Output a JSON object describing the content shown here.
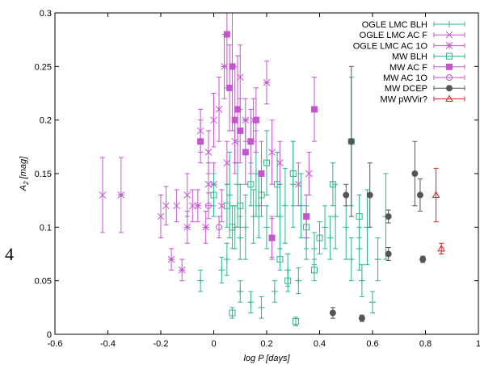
{
  "page_label": "4",
  "chart_data": {
    "type": "scatter",
    "title": "",
    "xlabel": "log P [days]",
    "ylabel": "A2 [mag]",
    "ylabel_main": "A",
    "ylabel_sub": "2",
    "ylabel_unit": " [mag]",
    "xlim": [
      -0.6,
      1.0
    ],
    "ylim": [
      0.0,
      0.3
    ],
    "x_ticks": [
      "-0.6",
      "-0.4",
      "-0.2",
      "0",
      "0.2",
      "0.4",
      "0.6",
      "0.8",
      "1"
    ],
    "x_tick_values": [
      -0.6,
      -0.4,
      -0.2,
      0,
      0.2,
      0.4,
      0.6,
      0.8,
      1.0
    ],
    "y_ticks": [
      "0",
      "0.05",
      "0.1",
      "0.15",
      "0.2",
      "0.25",
      "0.3"
    ],
    "y_tick_values": [
      0,
      0.05,
      0.1,
      0.15,
      0.2,
      0.25,
      0.3
    ],
    "grid": false,
    "legend_position": "top-right",
    "series": [
      {
        "name": "OGLE LMC BLH",
        "color": "#2ab58a",
        "marker": "plus",
        "points": [
          [
            -0.05,
            0.05,
            0.01
          ],
          [
            0.03,
            0.06,
            0.012
          ],
          [
            0.05,
            0.07,
            0.015
          ],
          [
            0.08,
            0.1,
            0.02
          ],
          [
            0.1,
            0.09,
            0.02
          ],
          [
            0.12,
            0.1,
            0.03
          ],
          [
            0.15,
            0.11,
            0.025
          ],
          [
            0.17,
            0.12,
            0.03
          ],
          [
            0.2,
            0.1,
            0.02
          ],
          [
            0.22,
            0.09,
            0.018
          ],
          [
            0.25,
            0.11,
            0.03
          ],
          [
            0.27,
            0.12,
            0.035
          ],
          [
            0.3,
            0.14,
            0.04
          ],
          [
            0.33,
            0.12,
            0.03
          ],
          [
            0.35,
            0.09,
            0.02
          ],
          [
            0.38,
            0.08,
            0.015
          ],
          [
            0.42,
            0.1,
            0.02
          ],
          [
            0.46,
            0.11,
            0.03
          ],
          [
            0.5,
            0.1,
            0.03
          ],
          [
            0.52,
            0.07,
            0.02
          ],
          [
            0.55,
            0.08,
            0.02
          ],
          [
            0.58,
            0.1,
            0.035
          ],
          [
            0.62,
            0.07,
            0.02
          ],
          [
            0.65,
            0.11,
            0.04
          ],
          [
            0.1,
            0.04,
            0.01
          ],
          [
            0.14,
            0.03,
            0.01
          ],
          [
            0.18,
            0.025,
            0.01
          ],
          [
            0.23,
            0.04,
            0.01
          ],
          [
            0.28,
            0.06,
            0.015
          ],
          [
            0.32,
            0.05,
            0.012
          ],
          [
            0.44,
            0.09,
            0.02
          ],
          [
            0.56,
            0.05,
            0.015
          ],
          [
            0.6,
            0.03,
            0.01
          ],
          [
            0.06,
            0.13,
            0.04
          ],
          [
            0.09,
            0.14,
            0.04
          ],
          [
            0.16,
            0.15,
            0.04
          ]
        ]
      },
      {
        "name": "OGLE LMC AC F",
        "color": "#c455cf",
        "marker": "cross",
        "points": [
          [
            -0.42,
            0.13,
            0.035
          ],
          [
            -0.2,
            0.11,
            0.02
          ],
          [
            -0.18,
            0.12,
            0.018
          ],
          [
            -0.14,
            0.12,
            0.015
          ],
          [
            -0.1,
            0.13,
            0.02
          ],
          [
            -0.08,
            0.12,
            0.015
          ],
          [
            -0.05,
            0.19,
            0.02
          ],
          [
            -0.02,
            0.17,
            0.02
          ],
          [
            0.0,
            0.2,
            0.025
          ],
          [
            0.02,
            0.21,
            0.03
          ],
          [
            0.05,
            0.16,
            0.02
          ],
          [
            0.08,
            0.18,
            0.02
          ],
          [
            0.1,
            0.24,
            0.03
          ],
          [
            0.15,
            0.2,
            0.02
          ],
          [
            0.22,
            0.17,
            0.03
          ],
          [
            0.25,
            0.16,
            0.02
          ],
          [
            0.32,
            0.14,
            0.02
          ],
          [
            0.36,
            0.15,
            0.02
          ],
          [
            -0.02,
            0.14,
            0.02
          ],
          [
            0.03,
            0.12,
            0.015
          ]
        ]
      },
      {
        "name": "OGLE LMC AC 1O",
        "color": "#c455cf",
        "marker": "star",
        "points": [
          [
            -0.35,
            0.13,
            0.035
          ],
          [
            -0.16,
            0.07,
            0.01
          ],
          [
            -0.12,
            0.06,
            0.01
          ],
          [
            -0.1,
            0.1,
            0.015
          ],
          [
            -0.06,
            0.12,
            0.015
          ],
          [
            0.0,
            0.14,
            0.02
          ],
          [
            0.04,
            0.25,
            0.03
          ],
          [
            0.12,
            0.2,
            0.02
          ],
          [
            0.2,
            0.235,
            0.02
          ],
          [
            -0.03,
            0.1,
            0.015
          ]
        ]
      },
      {
        "name": "MW BLH",
        "color": "#2ab58a",
        "marker": "square-open",
        "points": [
          [
            0.0,
            0.13,
            0.02
          ],
          [
            0.05,
            0.12,
            0.02
          ],
          [
            0.07,
            0.1,
            0.02
          ],
          [
            0.1,
            0.12,
            0.02
          ],
          [
            0.14,
            0.14,
            0.02
          ],
          [
            0.18,
            0.13,
            0.02
          ],
          [
            0.2,
            0.16,
            0.03
          ],
          [
            0.24,
            0.14,
            0.03
          ],
          [
            0.3,
            0.15,
            0.03
          ],
          [
            0.35,
            0.1,
            0.02
          ],
          [
            0.4,
            0.09,
            0.015
          ],
          [
            0.45,
            0.14,
            0.02
          ],
          [
            0.52,
            0.18,
            0.06
          ],
          [
            0.55,
            0.11,
            0.02
          ],
          [
            0.07,
            0.02,
            0.005
          ],
          [
            0.25,
            0.07,
            0.01
          ],
          [
            0.28,
            0.05,
            0.01
          ],
          [
            0.31,
            0.012,
            0.004
          ],
          [
            0.38,
            0.06,
            0.01
          ]
        ]
      },
      {
        "name": "MW AC F",
        "color": "#c455cf",
        "marker": "square-filled",
        "points": [
          [
            0.05,
            0.28,
            0.05
          ],
          [
            0.07,
            0.25,
            0.06
          ],
          [
            0.08,
            0.2,
            0.05
          ],
          [
            0.06,
            0.23,
            0.04
          ],
          [
            0.09,
            0.21,
            0.05
          ],
          [
            0.1,
            0.19,
            0.03
          ],
          [
            0.12,
            0.17,
            0.03
          ],
          [
            0.16,
            0.2,
            0.03
          ],
          [
            0.18,
            0.15,
            0.03
          ],
          [
            0.22,
            0.09,
            0.02
          ],
          [
            0.35,
            0.11,
            0.02
          ],
          [
            0.38,
            0.21,
            0.03
          ],
          [
            -0.05,
            0.18,
            0.02
          ],
          [
            0.14,
            0.18,
            0.03
          ]
        ]
      },
      {
        "name": "MW AC 1O",
        "color": "#c455cf",
        "marker": "circle-open",
        "points": [
          [
            -0.02,
            0.12,
            0.012
          ],
          [
            0.02,
            0.1,
            0.01
          ]
        ]
      },
      {
        "name": "MW DCEP",
        "color": "#555555",
        "marker": "circle-filled",
        "points": [
          [
            0.45,
            0.02,
            0.005
          ],
          [
            0.5,
            0.13,
            0.01
          ],
          [
            0.52,
            0.18,
            0.07
          ],
          [
            0.56,
            0.015,
            0.003
          ],
          [
            0.59,
            0.13,
            0.03
          ],
          [
            0.66,
            0.11,
            0.006
          ],
          [
            0.66,
            0.075,
            0.006
          ],
          [
            0.76,
            0.15,
            0.03
          ],
          [
            0.78,
            0.13,
            0.015
          ],
          [
            0.79,
            0.07,
            0.003
          ]
        ]
      },
      {
        "name": "MW pWVir?",
        "color": "#e02020",
        "marker": "triangle-open",
        "points": [
          [
            0.84,
            0.13,
            0.025
          ],
          [
            0.86,
            0.08,
            0.005
          ]
        ]
      }
    ]
  }
}
